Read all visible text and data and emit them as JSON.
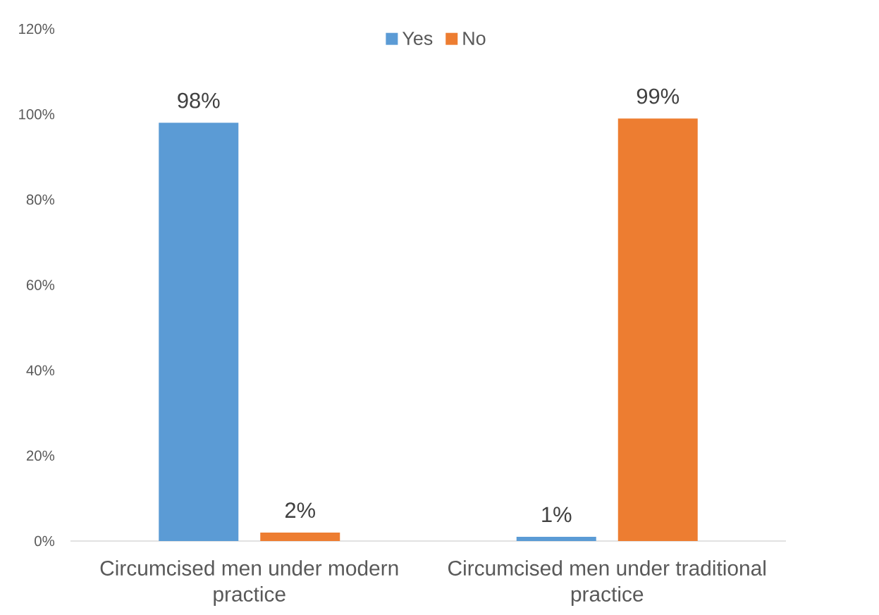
{
  "chart_data": {
    "type": "bar",
    "categories": [
      "Circumcised men under modern practice",
      "Circumcised men under traditional practice"
    ],
    "series": [
      {
        "name": "Yes",
        "color": "#5b9bd5",
        "values": [
          98,
          1
        ],
        "value_labels": [
          "98%",
          "1%"
        ]
      },
      {
        "name": "No",
        "color": "#ed7d31",
        "values": [
          2,
          99
        ],
        "value_labels": [
          "2%",
          "99%"
        ]
      }
    ],
    "ylim": [
      0,
      120
    ],
    "yticks": [
      {
        "value": 0,
        "label": "0%"
      },
      {
        "value": 20,
        "label": "20%"
      },
      {
        "value": 40,
        "label": "40%"
      },
      {
        "value": 60,
        "label": "60%"
      },
      {
        "value": 80,
        "label": "80%"
      },
      {
        "value": 100,
        "label": "100%"
      },
      {
        "value": 120,
        "label": "120%"
      }
    ],
    "grid": false,
    "legend": "top"
  }
}
